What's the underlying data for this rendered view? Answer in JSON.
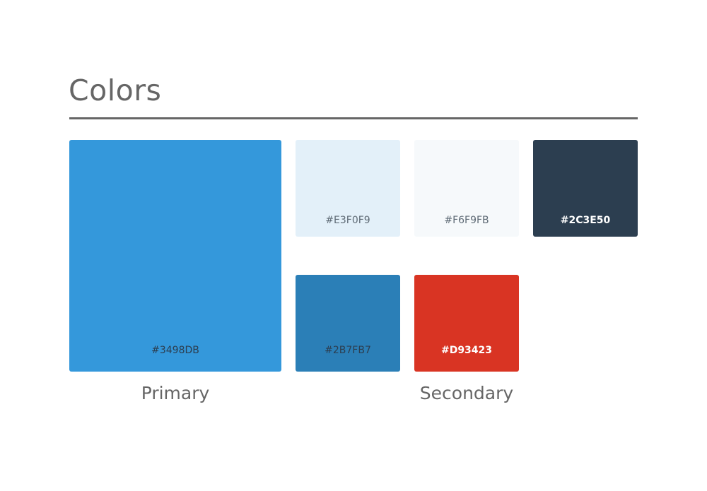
{
  "title": "Colors",
  "groups": {
    "primary": "Primary",
    "secondary": "Secondary"
  },
  "swatches": [
    {
      "code": "#3498DB",
      "color": "#3498DB",
      "text_color": "#2C3E50"
    },
    {
      "code": "#E3F0F9",
      "color": "#E3F0F9",
      "text_color": "#5F6B76"
    },
    {
      "code": "#F6F9FB",
      "color": "#F6F9FB",
      "text_color": "#5F6B76"
    },
    {
      "code": "#2C3E50",
      "color": "#2C3E50",
      "text_color": "#FFFFFF"
    },
    {
      "code": "#2B7FB7",
      "color": "#2B7FB7",
      "text_color": "#2C3E50"
    },
    {
      "code": "#D93423",
      "color": "#D93423",
      "text_color": "#FFFFFF"
    }
  ]
}
